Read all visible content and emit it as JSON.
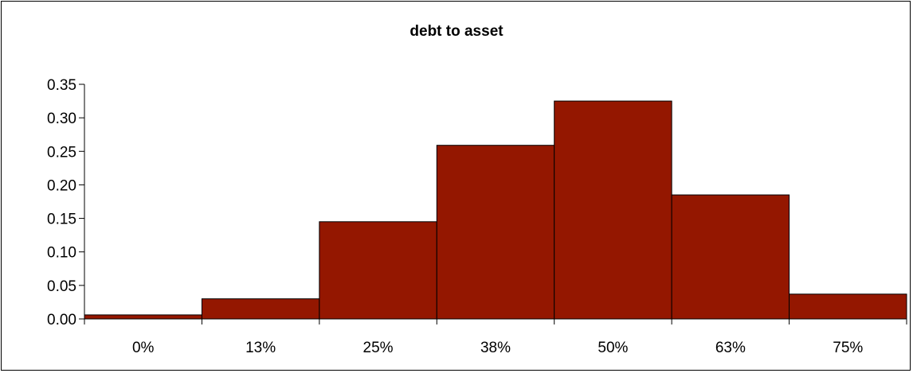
{
  "chart_data": {
    "type": "bar",
    "title": "debt to asset",
    "xlabel": "",
    "ylabel": "",
    "categories": [
      "0%",
      "13%",
      "25%",
      "38%",
      "50%",
      "63%",
      "75%"
    ],
    "values": [
      0.006,
      0.03,
      0.145,
      0.259,
      0.325,
      0.185,
      0.037
    ],
    "yticks": [
      "0.00",
      "0.05",
      "0.10",
      "0.15",
      "0.20",
      "0.25",
      "0.30",
      "0.35"
    ],
    "ylim": [
      0,
      0.35
    ],
    "grid": false,
    "legend": "none",
    "bar_color": "#941700",
    "bar_edge_color": "#000000"
  }
}
